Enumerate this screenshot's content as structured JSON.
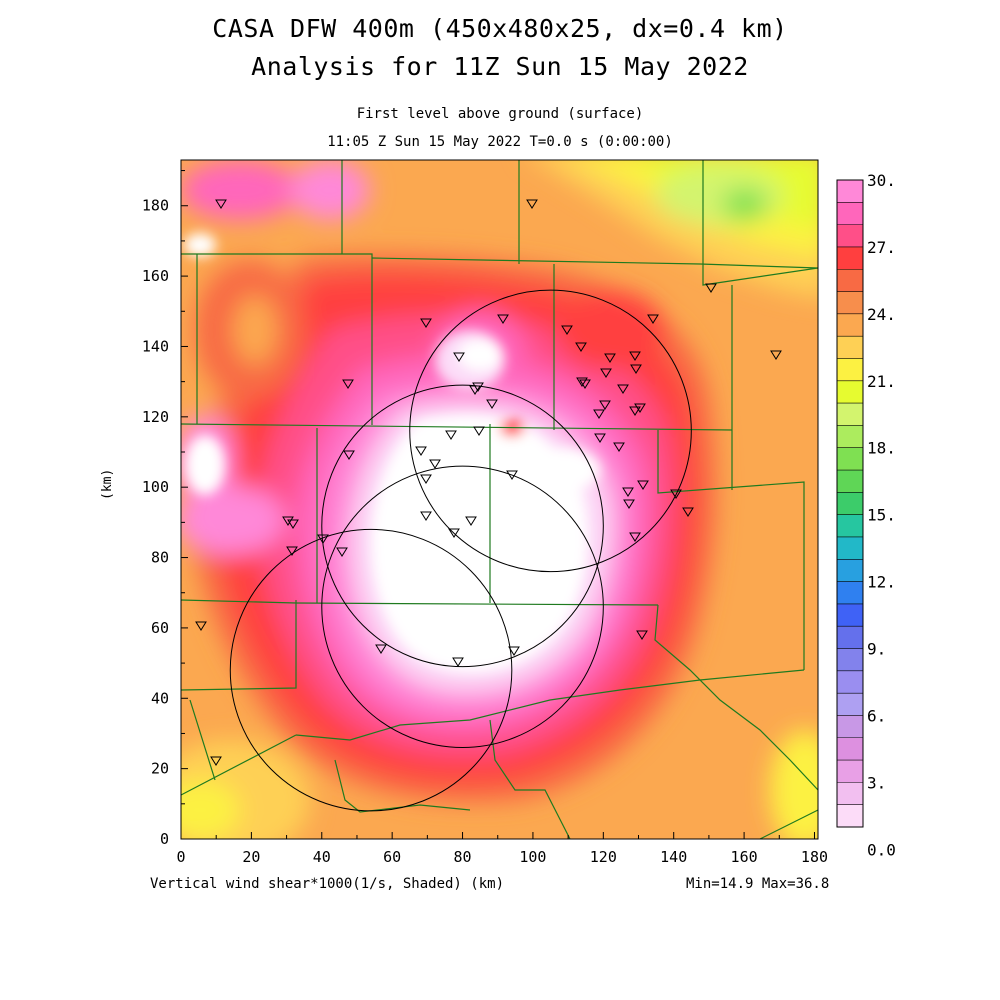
{
  "header": {
    "title_line1": "CASA DFW 400m (450x480x25, dx=0.4 km)",
    "title_line2": "Analysis for 11Z Sun 15 May 2022",
    "subtitle_level": "First level above ground (surface)",
    "subtitle_time": "11:05 Z Sun 15 May 2022   T=0.0 s (0:00:00)"
  },
  "footer": {
    "field_label": "Vertical wind shear*1000(1/s, Shaded)  (km)",
    "minmax": "Min=14.9 Max=36.8"
  },
  "axes": {
    "x_ticks": [
      "0",
      "20",
      "40",
      "60",
      "80",
      "100",
      "120",
      "140",
      "160",
      "180"
    ],
    "y_ticks": [
      "0",
      "20",
      "40",
      "60",
      "80",
      "100",
      "120",
      "140",
      "160",
      "180"
    ],
    "ylabel": "(km)",
    "x_range_km": [
      0,
      181
    ],
    "y_range_km": [
      0,
      193
    ]
  },
  "colorbar": {
    "labels": [
      "30.",
      "27.",
      "24.",
      "21.",
      "18.",
      "15.",
      "12.",
      "9.",
      "6.",
      "3.",
      "0.0"
    ],
    "colors_top_to_bottom": [
      "#ff88d8",
      "#ff66bb",
      "#ff4f88",
      "#ff3f3f",
      "#f86a44",
      "#f78e4c",
      "#fba850",
      "#fed055",
      "#fcf142",
      "#e6fb30",
      "#d3f46e",
      "#acec5e",
      "#7fe052",
      "#5fd656",
      "#3ccc6a",
      "#26c6a0",
      "#22b8c8",
      "#28a0e0",
      "#2f80f0",
      "#3f62f6",
      "#6470ec",
      "#8282ec",
      "#9a8ef0",
      "#aea0f2",
      "#c898e6",
      "#dd90e0",
      "#e8a0e6",
      "#f2bff0",
      "#fcdcf8"
    ]
  },
  "map": {
    "palette": {
      "white": "#ffffff",
      "pale_pink": "#fcdcf8",
      "pink": "#ff88d8",
      "hot_pink": "#ff66bb",
      "rose": "#ff4f88",
      "red": "#ff3f3f",
      "orange_red": "#f86a44",
      "orange": "#f78e4c",
      "light_orange": "#fba850",
      "yellow_orange": "#fed055",
      "yellow": "#fcf142",
      "yellow_green": "#e6fb30",
      "light_green": "#d3f46e",
      "green": "#7fe052"
    },
    "boundary_color": "#1f7a1f",
    "radar_sites_km": [
      {
        "x": 54,
        "y": 48
      },
      {
        "x": 80,
        "y": 66
      },
      {
        "x": 80,
        "y": 89
      },
      {
        "x": 105,
        "y": 116
      }
    ],
    "radar_range_km": 40,
    "station_count": 63
  }
}
